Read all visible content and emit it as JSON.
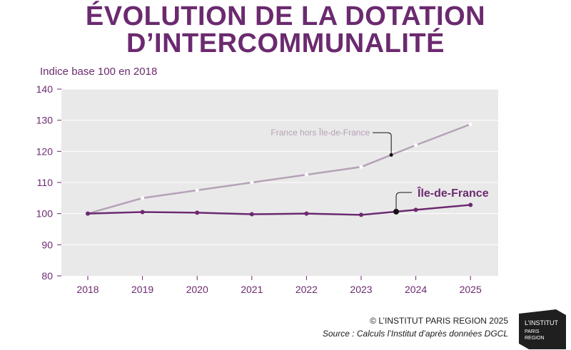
{
  "header": {
    "title_line1": "ÉVOLUTION DE LA DOTATION",
    "title_line2": "D’INTERCOMMUNALITÉ"
  },
  "colors": {
    "title": "#6b2a6f",
    "idf_line": "#6b2a6f",
    "france_line": "#b5a2b7",
    "plot_bg": "#e9e9e9",
    "axis_text": "#6b2a6f"
  },
  "chart_data": {
    "type": "line",
    "title": "ÉVOLUTION DE LA DOTATION D’INTERCOMMUNALITÉ",
    "ylabel": "Indice base 100 en 2018",
    "xlabel": "",
    "x": [
      "2018",
      "2019",
      "2020",
      "2021",
      "2022",
      "2023",
      "2024",
      "2025"
    ],
    "ylim": [
      80,
      140
    ],
    "yticks": [
      80,
      90,
      100,
      110,
      120,
      130,
      140
    ],
    "grid": true,
    "series": [
      {
        "name": "France hors Île-de-France",
        "values": [
          100,
          105,
          107.5,
          110,
          112.5,
          115,
          122,
          128.7
        ]
      },
      {
        "name": "Île-de-France",
        "values": [
          100,
          100.5,
          100.3,
          99.8,
          100,
          99.6,
          101.2,
          102.8
        ]
      }
    ]
  },
  "footer": {
    "copyright": "© L’INSTITUT PARIS REGION 2025",
    "source": "Source : Calculs l’Institut d’après données DGCL",
    "logo_line1": "L’INSTITUT",
    "logo_line2": "PARIS",
    "logo_line3": "REGION"
  }
}
